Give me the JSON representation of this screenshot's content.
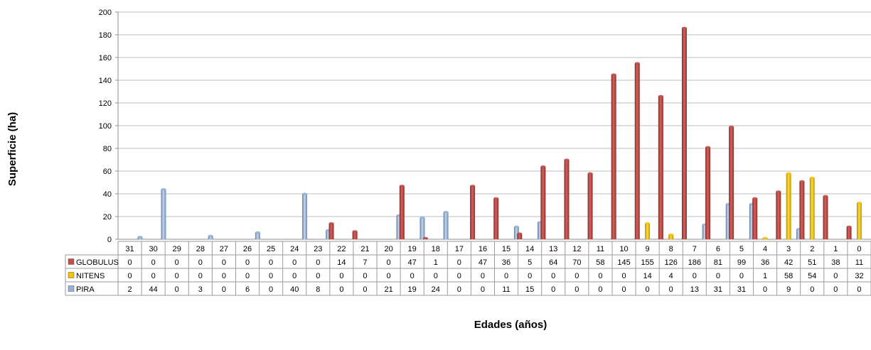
{
  "chart_data": {
    "type": "bar",
    "ylabel": "Superficie (ha)",
    "xlabel": "Edades (años)",
    "ylim": [
      0,
      200
    ],
    "yticks": [
      "0",
      "20",
      "40",
      "60",
      "80",
      "100",
      "120",
      "140",
      "160",
      "180",
      "200"
    ],
    "grid": true,
    "categories": [
      "31",
      "30",
      "29",
      "28",
      "27",
      "26",
      "25",
      "24",
      "23",
      "22",
      "21",
      "20",
      "19",
      "18",
      "17",
      "16",
      "15",
      "14",
      "13",
      "12",
      "11",
      "10",
      "9",
      "8",
      "7",
      "6",
      "5",
      "4",
      "3",
      "2",
      "1",
      "0"
    ],
    "series": [
      {
        "name": "GLOBULUS",
        "color": "#c0504d",
        "values": [
          0,
          0,
          0,
          0,
          0,
          0,
          0,
          0,
          0,
          14,
          7,
          0,
          47,
          1,
          0,
          47,
          36,
          5,
          64,
          70,
          58,
          145,
          155,
          126,
          186,
          81,
          99,
          36,
          42,
          51,
          38,
          11
        ]
      },
      {
        "name": "NITENS",
        "color": "#f5c400",
        "values": [
          0,
          0,
          0,
          0,
          0,
          0,
          0,
          0,
          0,
          0,
          0,
          0,
          0,
          0,
          0,
          0,
          0,
          0,
          0,
          0,
          0,
          0,
          14,
          4,
          0,
          0,
          0,
          1,
          58,
          54,
          0,
          32
        ]
      },
      {
        "name": "PIRA",
        "color": "#95b3d7",
        "values": [
          2,
          44,
          0,
          3,
          0,
          6,
          0,
          40,
          8,
          0,
          0,
          21,
          19,
          24,
          0,
          0,
          11,
          15,
          0,
          0,
          0,
          0,
          0,
          0,
          13,
          31,
          31,
          0,
          9,
          0,
          0,
          0
        ]
      }
    ]
  }
}
